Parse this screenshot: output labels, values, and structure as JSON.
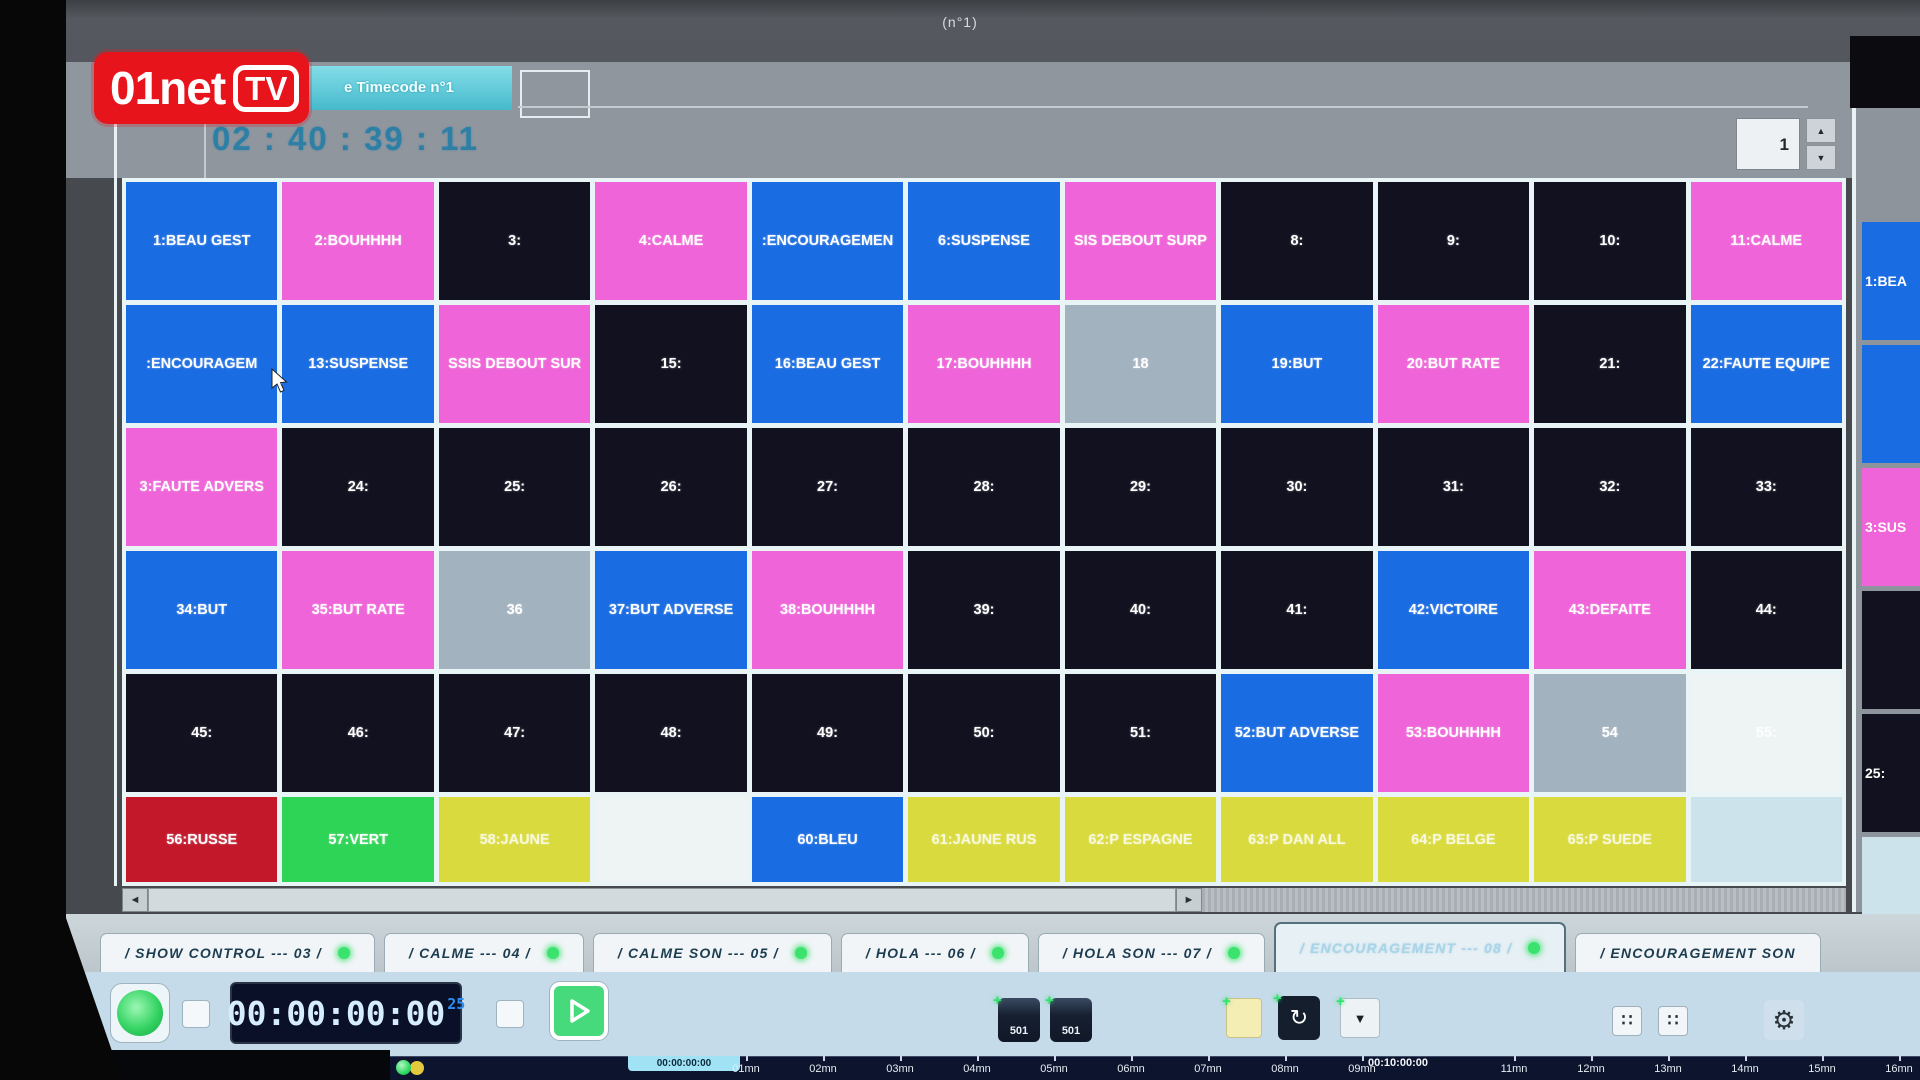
{
  "palette": {
    "cell_blue": "#1a6ce2",
    "cell_pink": "#ef64d8",
    "cell_dark": "#111120",
    "cell_gray": "#a3b2bf",
    "cell_red": "#c2182a",
    "cell_green": "#2ed456",
    "cell_yellow": "#d9da3d",
    "cell_white": "#eef3f4",
    "cell_pale": "#cde3ec",
    "accent_green_dot": "#3ce26e",
    "logo_red": "#e8141c",
    "titlebar_cyan": "#55c6d6",
    "timecode_teal": "#2d7fa6",
    "lcd_digit": "#d6ecff"
  },
  "photo": {
    "monitor_title": "(n°1)"
  },
  "overlay_logo": {
    "main": "01net",
    "badge": "TV"
  },
  "header": {
    "titlebar_text": "e Timecode n°1",
    "timecode": "02 : 40 : 39 : 11",
    "page_number": "1"
  },
  "icons": {
    "up": "▲",
    "down": "▼",
    "left": "◄",
    "right": "►",
    "gear": "⚙",
    "loop": "↻",
    "v": "▼",
    "dots": "∷",
    "plus": "+"
  },
  "grid": {
    "rows": [
      [
        {
          "label": "1:BEAU GEST",
          "color": "blue"
        },
        {
          "label": "2:BOUHHHH",
          "color": "pink"
        },
        {
          "label": "3:",
          "color": "dark"
        },
        {
          "label": "4:CALME",
          "color": "pink"
        },
        {
          "label": ":ENCOURAGEMEN",
          "color": "blue"
        },
        {
          "label": "6:SUSPENSE",
          "color": "blue"
        },
        {
          "label": "SIS DEBOUT SURP",
          "color": "pink"
        },
        {
          "label": "8:",
          "color": "dark"
        },
        {
          "label": "9:",
          "color": "dark"
        },
        {
          "label": "10:",
          "color": "dark"
        },
        {
          "label": "11:CALME",
          "color": "pink"
        }
      ],
      [
        {
          "label": ":ENCOURAGEM",
          "color": "blue"
        },
        {
          "label": "13:SUSPENSE",
          "color": "blue"
        },
        {
          "label": "SSIS DEBOUT SUR",
          "color": "pink"
        },
        {
          "label": "15:",
          "color": "dark"
        },
        {
          "label": "16:BEAU GEST",
          "color": "blue"
        },
        {
          "label": "17:BOUHHHH",
          "color": "pink"
        },
        {
          "label": "18",
          "color": "gray"
        },
        {
          "label": "19:BUT",
          "color": "blue"
        },
        {
          "label": "20:BUT RATE",
          "color": "pink"
        },
        {
          "label": "21:",
          "color": "dark"
        },
        {
          "label": "22:FAUTE EQUIPE",
          "color": "blue"
        }
      ],
      [
        {
          "label": "3:FAUTE ADVERS",
          "color": "pink"
        },
        {
          "label": "24:",
          "color": "dark"
        },
        {
          "label": "25:",
          "color": "dark"
        },
        {
          "label": "26:",
          "color": "dark"
        },
        {
          "label": "27:",
          "color": "dark"
        },
        {
          "label": "28:",
          "color": "dark"
        },
        {
          "label": "29:",
          "color": "dark"
        },
        {
          "label": "30:",
          "color": "dark"
        },
        {
          "label": "31:",
          "color": "dark"
        },
        {
          "label": "32:",
          "color": "dark"
        },
        {
          "label": "33:",
          "color": "dark"
        }
      ],
      [
        {
          "label": "34:BUT",
          "color": "blue"
        },
        {
          "label": "35:BUT RATE",
          "color": "pink"
        },
        {
          "label": "36",
          "color": "gray"
        },
        {
          "label": "37:BUT ADVERSE",
          "color": "blue"
        },
        {
          "label": "38:BOUHHHH",
          "color": "pink"
        },
        {
          "label": "39:",
          "color": "dark"
        },
        {
          "label": "40:",
          "color": "dark"
        },
        {
          "label": "41:",
          "color": "dark"
        },
        {
          "label": "42:VICTOIRE",
          "color": "blue"
        },
        {
          "label": "43:DEFAITE",
          "color": "pink"
        },
        {
          "label": "44:",
          "color": "dark"
        }
      ],
      [
        {
          "label": "45:",
          "color": "dark"
        },
        {
          "label": "46:",
          "color": "dark"
        },
        {
          "label": "47:",
          "color": "dark"
        },
        {
          "label": "48:",
          "color": "dark"
        },
        {
          "label": "49:",
          "color": "dark"
        },
        {
          "label": "50:",
          "color": "dark"
        },
        {
          "label": "51:",
          "color": "dark"
        },
        {
          "label": "52:BUT ADVERSE",
          "color": "blue"
        },
        {
          "label": "53:BOUHHHH",
          "color": "pink"
        },
        {
          "label": "54",
          "color": "gray"
        },
        {
          "label": "55:",
          "color": "white",
          "dim": true
        }
      ],
      [
        {
          "label": "56:RUSSE",
          "color": "red"
        },
        {
          "label": "57:VERT",
          "color": "green"
        },
        {
          "label": "58:JAUNE",
          "color": "yellow",
          "dim": true
        },
        {
          "label": "",
          "color": "white"
        },
        {
          "label": "60:BLEU",
          "color": "blue"
        },
        {
          "label": "61:JAUNE RUS",
          "color": "yellow",
          "dim": true
        },
        {
          "label": "62:P ESPAGNE",
          "color": "yellow",
          "dim": true
        },
        {
          "label": "63:P DAN ALL",
          "color": "yellow",
          "dim": true
        },
        {
          "label": "64:P BELGE",
          "color": "yellow",
          "dim": true
        },
        {
          "label": "65:P SUEDE",
          "color": "yellow",
          "dim": true
        },
        {
          "label": "",
          "color": "pale"
        }
      ]
    ]
  },
  "side_panel": {
    "cells": [
      {
        "label": "1:BEA",
        "color": "blue"
      },
      {
        "label": "",
        "color": "blue"
      },
      {
        "label": "3:SUS",
        "color": "pink"
      },
      {
        "label": "",
        "color": "dark"
      },
      {
        "label": "25:",
        "color": "dark"
      },
      {
        "label": "",
        "color": "pale"
      }
    ]
  },
  "tabs": {
    "items": [
      {
        "label": "/ SHOW CONTROL --- 03 /",
        "active": false,
        "partial": false
      },
      {
        "label": "/ CALME --- 04 /",
        "active": false,
        "partial": false
      },
      {
        "label": "/ CALME SON --- 05 /",
        "active": false,
        "partial": false
      },
      {
        "label": "/ HOLA --- 06 /",
        "active": false,
        "partial": false
      },
      {
        "label": "/ HOLA SON --- 07 /",
        "active": false,
        "partial": false
      },
      {
        "label": "/ ENCOURAGEMENT --- 08 /",
        "active": true,
        "partial": false
      },
      {
        "label": "/ ENCOURAGEMENT SON",
        "active": false,
        "partial": true
      }
    ]
  },
  "transport": {
    "timecode": "00:00:00:00",
    "fps": "25",
    "tc_button_label": "501"
  },
  "timeline": {
    "cursor_label": "00:00:00:00",
    "ten_min_label": "00:10:00:00",
    "minutes_before": [
      "01mn",
      "02mn",
      "03mn",
      "04mn",
      "05mn",
      "06mn",
      "07mn",
      "08mn",
      "09mn"
    ],
    "minutes_after": [
      "11mn",
      "12mn",
      "13mn",
      "14mn",
      "15mn",
      "16mn"
    ]
  }
}
